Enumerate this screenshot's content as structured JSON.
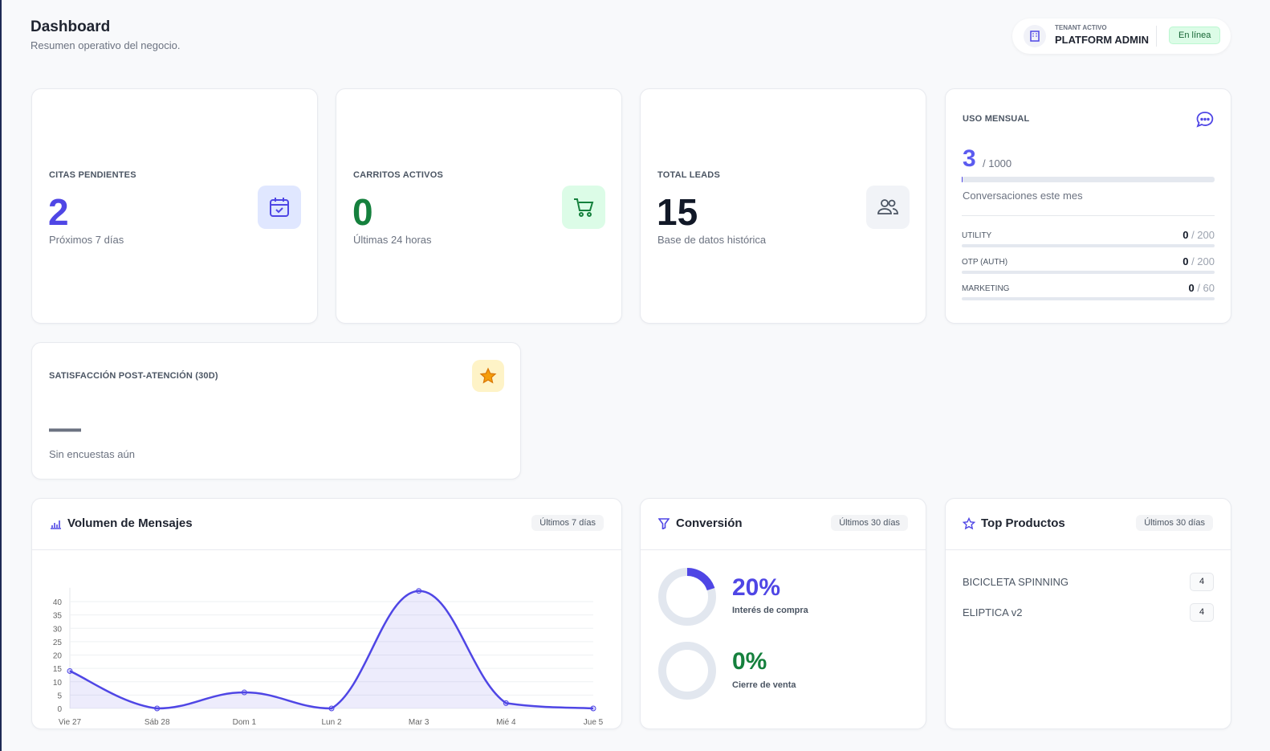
{
  "header": {
    "title": "Dashboard",
    "subtitle": "Resumen operativo del negocio."
  },
  "tenant": {
    "label": "TENANT ACTIVO",
    "name": "PLATFORM ADMIN",
    "status": "En línea",
    "icon": "building-icon"
  },
  "stats": [
    {
      "label": "CITAS PENDIENTES",
      "value": "2",
      "caption": "Próximos 7 días",
      "color": "#4f46e5",
      "icon": "calendar-check-icon"
    },
    {
      "label": "CARRITOS ACTIVOS",
      "value": "0",
      "caption": "Últimas 24 horas",
      "color": "#15803d",
      "icon": "cart-icon"
    },
    {
      "label": "TOTAL LEADS",
      "value": "15",
      "caption": "Base de datos histórica",
      "color": "#111827",
      "icon": "users-icon"
    }
  ],
  "usage": {
    "label": "USO MENSUAL",
    "value": "3",
    "limit": "/ 1000",
    "caption": "Conversaciones este mes",
    "progress": 0.003,
    "icon": "chat-bubble-icon",
    "items": [
      {
        "name": "UTILITY",
        "used": "0",
        "limit": "/ 200"
      },
      {
        "name": "OTP (AUTH)",
        "used": "0",
        "limit": "/ 200"
      },
      {
        "name": "MARKETING",
        "used": "0",
        "limit": "/ 60"
      }
    ]
  },
  "satisfaction": {
    "label": "SATISFACCIÓN POST-ATENCIÓN (30D)",
    "value": "—",
    "caption": "Sin encuestas aún",
    "icon": "star-icon"
  },
  "volume": {
    "title": "Volumen de Mensajes",
    "range": "Últimos 7 días",
    "icon": "bar-chart-icon"
  },
  "chart_data": {
    "type": "area",
    "categories": [
      "Vie 27",
      "Sáb 28",
      "Dom 1",
      "Lun 2",
      "Mar 3",
      "Mié 4",
      "Jue 5"
    ],
    "values": [
      14,
      0,
      6,
      0,
      44,
      2,
      0
    ],
    "yticks": [
      0,
      5,
      10,
      15,
      20,
      25,
      30,
      35,
      40
    ],
    "ylim": [
      0,
      44
    ],
    "grid": true,
    "color": "#4f46e5"
  },
  "conversion": {
    "title": "Conversión",
    "range": "Últimos 30 días",
    "icon": "funnel-icon",
    "metrics": [
      {
        "value": "20%",
        "label": "Interés de compra",
        "pct": 20,
        "color": "#4f46e5"
      },
      {
        "value": "0%",
        "label": "Cierre de venta",
        "pct": 0,
        "color": "#15803d"
      }
    ]
  },
  "products": {
    "title": "Top Productos",
    "range": "Últimos 30 días",
    "icon": "star-outline-icon",
    "items": [
      {
        "name": "BICICLETA SPINNING",
        "count": "4"
      },
      {
        "name": "ELIPTICA v2",
        "count": "4"
      }
    ]
  }
}
